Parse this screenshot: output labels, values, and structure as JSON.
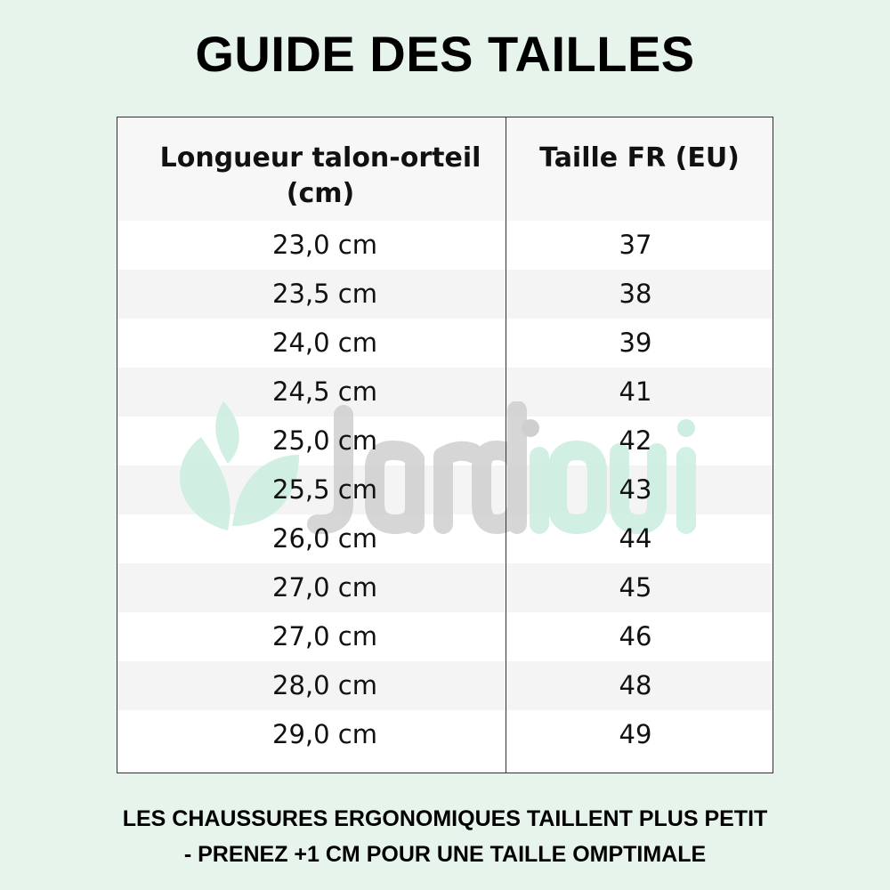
{
  "title": "GUIDE DES TAILLES",
  "table": {
    "headers": [
      "Longueur talon-orteil (cm)",
      "Taille FR (EU)"
    ],
    "rows": [
      [
        "23,0 cm",
        "37"
      ],
      [
        "23,5 cm",
        "38"
      ],
      [
        "24,0 cm",
        "39"
      ],
      [
        "24,5 cm",
        "41"
      ],
      [
        "25,0 cm",
        "42"
      ],
      [
        "25,5 cm",
        "43"
      ],
      [
        "26,0 cm",
        "44"
      ],
      [
        "27,0 cm",
        "45"
      ],
      [
        "27,0 cm",
        "46"
      ],
      [
        "28,0 cm",
        "48"
      ],
      [
        "29,0 cm",
        "49"
      ]
    ]
  },
  "watermark": {
    "text": "Jardioui",
    "colors": {
      "gray": "#cfcfcf",
      "green": "#cdeee0"
    }
  },
  "footer": {
    "line1": "LES CHAUSSURES ERGONOMIQUES TAILLENT PLUS PETIT",
    "line2": "- PRENEZ +1 CM POUR UNE TAILLE OMPTIMALE"
  },
  "colors": {
    "background": "#e6f4ec",
    "row_alt": "#f4f4f4"
  }
}
